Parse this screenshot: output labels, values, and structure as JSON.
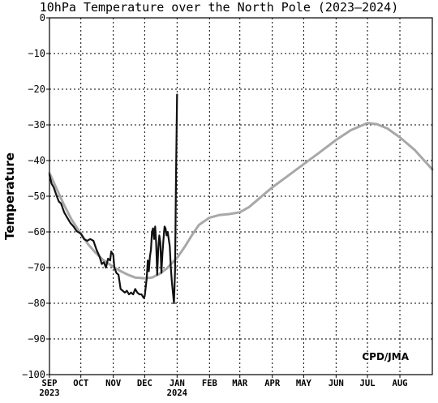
{
  "chart_data": {
    "type": "line",
    "title": "10hPa Temperature over the North Pole (2023–2024)",
    "ylabel": "Temperature",
    "xlabel": "",
    "credit": "CPD/JMA",
    "ylim": [
      -100,
      0
    ],
    "yticks": [
      0,
      -10,
      -20,
      -30,
      -40,
      -50,
      -60,
      -70,
      -80,
      -90,
      -100
    ],
    "ytick_labels": [
      "0",
      "−10",
      "−20",
      "−30",
      "−40",
      "−50",
      "−60",
      "−70",
      "−80",
      "−90",
      "−100"
    ],
    "xlim": [
      "2023-09-01",
      "2024-09-01"
    ],
    "months": [
      {
        "label": "SEP",
        "date": "2023-09-01",
        "year": "2023"
      },
      {
        "label": "OCT",
        "date": "2023-10-01"
      },
      {
        "label": "NOV",
        "date": "2023-11-01"
      },
      {
        "label": "DEC",
        "date": "2023-12-01"
      },
      {
        "label": "JAN",
        "date": "2024-01-01",
        "year": "2024"
      },
      {
        "label": "FEB",
        "date": "2024-02-01"
      },
      {
        "label": "MAR",
        "date": "2024-03-01"
      },
      {
        "label": "APR",
        "date": "2024-04-01"
      },
      {
        "label": "MAY",
        "date": "2024-05-01"
      },
      {
        "label": "JUN",
        "date": "2024-06-01"
      },
      {
        "label": "JUL",
        "date": "2024-07-01"
      },
      {
        "label": "AUG",
        "date": "2024-08-01"
      }
    ],
    "grid": true,
    "series": [
      {
        "role": "climatology",
        "color": "#a8a8a8",
        "points": [
          [
            "2023-09-01",
            -43.5
          ],
          [
            "2023-09-08",
            -48.0
          ],
          [
            "2023-09-15",
            -52.5
          ],
          [
            "2023-09-22",
            -56.5
          ],
          [
            "2023-10-01",
            -60.5
          ],
          [
            "2023-10-08",
            -63.5
          ],
          [
            "2023-10-15",
            -65.8
          ],
          [
            "2023-10-22",
            -67.8
          ],
          [
            "2023-11-01",
            -69.8
          ],
          [
            "2023-11-08",
            -71.0
          ],
          [
            "2023-11-15",
            -72.0
          ],
          [
            "2023-11-22",
            -72.8
          ],
          [
            "2023-12-01",
            -73.0
          ],
          [
            "2023-12-08",
            -72.8
          ],
          [
            "2023-12-15",
            -71.8
          ],
          [
            "2023-12-22",
            -70.3
          ],
          [
            "2024-01-01",
            -67.3
          ],
          [
            "2024-01-08",
            -64.3
          ],
          [
            "2024-01-15",
            -61.0
          ],
          [
            "2024-01-22",
            -58.0
          ],
          [
            "2024-02-01",
            -56.0
          ],
          [
            "2024-02-10",
            -55.3
          ],
          [
            "2024-02-20",
            -55.0
          ],
          [
            "2024-03-01",
            -54.5
          ],
          [
            "2024-03-10",
            -53.0
          ],
          [
            "2024-03-20",
            -50.5
          ],
          [
            "2024-04-01",
            -47.5
          ],
          [
            "2024-04-15",
            -44.5
          ],
          [
            "2024-05-01",
            -41.0
          ],
          [
            "2024-05-15",
            -38.0
          ],
          [
            "2024-06-01",
            -34.2
          ],
          [
            "2024-06-15",
            -31.5
          ],
          [
            "2024-07-01",
            -29.5
          ],
          [
            "2024-07-10",
            -29.8
          ],
          [
            "2024-07-20",
            -31.0
          ],
          [
            "2024-08-01",
            -33.5
          ],
          [
            "2024-08-15",
            -37.0
          ],
          [
            "2024-09-01",
            -42.5
          ]
        ]
      },
      {
        "role": "observed",
        "color": "#111111",
        "points": [
          [
            "2023-09-01",
            -44.0
          ],
          [
            "2023-09-03",
            -46.5
          ],
          [
            "2023-09-05",
            -47.5
          ],
          [
            "2023-09-08",
            -50.0
          ],
          [
            "2023-09-10",
            -51.5
          ],
          [
            "2023-09-12",
            -52.0
          ],
          [
            "2023-09-15",
            -54.5
          ],
          [
            "2023-09-18",
            -56.0
          ],
          [
            "2023-09-21",
            -57.5
          ],
          [
            "2023-09-24",
            -58.5
          ],
          [
            "2023-09-27",
            -59.8
          ],
          [
            "2023-10-01",
            -60.5
          ],
          [
            "2023-10-04",
            -62.0
          ],
          [
            "2023-10-07",
            -62.5
          ],
          [
            "2023-10-10",
            -62.0
          ],
          [
            "2023-10-13",
            -62.5
          ],
          [
            "2023-10-16",
            -65.0
          ],
          [
            "2023-10-19",
            -67.0
          ],
          [
            "2023-10-21",
            -69.0
          ],
          [
            "2023-10-23",
            -68.5
          ],
          [
            "2023-10-25",
            -70.0
          ],
          [
            "2023-10-27",
            -67.5
          ],
          [
            "2023-10-29",
            -68.0
          ],
          [
            "2023-10-30",
            -65.5
          ],
          [
            "2023-11-01",
            -66.5
          ],
          [
            "2023-11-02",
            -70.0
          ],
          [
            "2023-11-04",
            -71.5
          ],
          [
            "2023-11-06",
            -72.0
          ],
          [
            "2023-11-08",
            -76.0
          ],
          [
            "2023-11-10",
            -76.5
          ],
          [
            "2023-11-12",
            -77.0
          ],
          [
            "2023-11-14",
            -76.5
          ],
          [
            "2023-11-16",
            -77.5
          ],
          [
            "2023-11-18",
            -77.0
          ],
          [
            "2023-11-20",
            -77.5
          ],
          [
            "2023-11-22",
            -76.0
          ],
          [
            "2023-11-24",
            -77.0
          ],
          [
            "2023-11-26",
            -77.5
          ],
          [
            "2023-11-28",
            -77.5
          ],
          [
            "2023-11-30",
            -78.5
          ],
          [
            "2023-12-01",
            -78.0
          ],
          [
            "2023-12-03",
            -73.0
          ],
          [
            "2023-12-04",
            -68.0
          ],
          [
            "2023-12-05",
            -71.0
          ],
          [
            "2023-12-06",
            -67.0
          ],
          [
            "2023-12-07",
            -65.0
          ],
          [
            "2023-12-08",
            -60.0
          ],
          [
            "2023-12-09",
            -59.0
          ],
          [
            "2023-12-10",
            -62.0
          ],
          [
            "2023-12-11",
            -58.5
          ],
          [
            "2023-12-12",
            -63.0
          ],
          [
            "2023-12-13",
            -72.0
          ],
          [
            "2023-12-14",
            -65.0
          ],
          [
            "2023-12-15",
            -61.0
          ],
          [
            "2023-12-16",
            -63.0
          ],
          [
            "2023-12-17",
            -71.5
          ],
          [
            "2023-12-18",
            -66.0
          ],
          [
            "2023-12-19",
            -62.0
          ],
          [
            "2023-12-20",
            -58.5
          ],
          [
            "2023-12-21",
            -59.0
          ],
          [
            "2023-12-22",
            -61.0
          ],
          [
            "2023-12-23",
            -60.0
          ],
          [
            "2023-12-24",
            -62.0
          ],
          [
            "2023-12-25",
            -64.0
          ],
          [
            "2023-12-26",
            -70.0
          ],
          [
            "2023-12-27",
            -74.0
          ],
          [
            "2023-12-28",
            -77.0
          ],
          [
            "2023-12-29",
            -80.0
          ],
          [
            "2023-12-30",
            -71.0
          ],
          [
            "2023-12-31",
            -45.0
          ],
          [
            "2024-01-01",
            -21.5
          ]
        ]
      }
    ]
  }
}
